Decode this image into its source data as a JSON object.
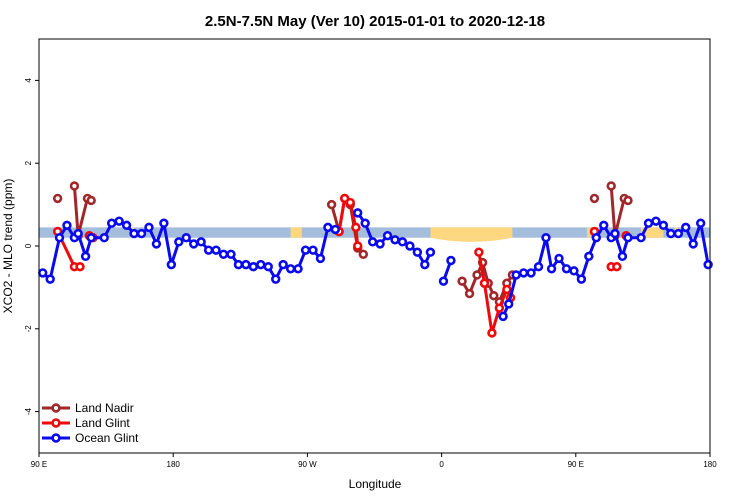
{
  "chart_data": {
    "type": "line",
    "title": "2.5N-7.5N May (Ver 10)   2015-01-01 to 2020-12-18",
    "xlabel": "Longitude",
    "ylabel": "XCO2 - MLO trend (ppm)",
    "xlim": [
      0,
      180
    ],
    "ylim": [
      -5,
      5
    ],
    "x_ticks": [
      {
        "value": 0,
        "label": "90 E"
      },
      {
        "value": 36,
        "label": "180"
      },
      {
        "value": 72,
        "label": "90 W"
      },
      {
        "value": 108,
        "label": "0"
      },
      {
        "value": 144,
        "label": "90 E"
      },
      {
        "value": 180,
        "label": "180"
      }
    ],
    "y_ticks": [
      -4,
      -2,
      0,
      2,
      4
    ],
    "grid": false,
    "legend_position": "bottom-left",
    "background_band": {
      "y_range": [
        0.2,
        0.45
      ],
      "ocean_color": "#a5bddc",
      "land_color": "#fdd77e",
      "land_x_segments": [
        [
          24.5,
          25.5
        ],
        [
          67.5,
          70.5
        ],
        [
          105,
          127
        ],
        [
          147,
          148
        ],
        [
          161.5,
          167.5
        ],
        [
          170.5,
          171.5
        ]
      ]
    },
    "series": [
      {
        "name": "Land Nadir",
        "color": "#a0282a",
        "segments": [
          [
            [
              5,
              1.15
            ]
          ],
          [
            [
              9.5,
              1.45
            ],
            [
              10.5,
              0.25
            ],
            [
              13,
              1.15
            ],
            [
              14,
              1.1
            ]
          ],
          [
            [
              78.5,
              1.0
            ],
            [
              80.5,
              0.35
            ],
            [
              82,
              1.15
            ],
            [
              83.5,
              1.0
            ],
            [
              85.5,
              -0.05
            ],
            [
              87,
              -0.2
            ]
          ],
          [
            [
              113.5,
              -0.85
            ],
            [
              115.5,
              -1.15
            ],
            [
              117.5,
              -0.7
            ],
            [
              119,
              -0.4
            ],
            [
              120.5,
              -0.9
            ],
            [
              122,
              -1.2
            ],
            [
              123.5,
              -1.35
            ],
            [
              125.5,
              -0.9
            ],
            [
              127,
              -0.7
            ]
          ],
          [
            [
              149,
              1.15
            ]
          ],
          [
            [
              153.5,
              1.45
            ],
            [
              154.5,
              0.25
            ],
            [
              157,
              1.15
            ],
            [
              158,
              1.1
            ]
          ]
        ]
      },
      {
        "name": "Land Glint",
        "color": "#ee0a0a",
        "segments": [
          [
            [
              5,
              0.35
            ],
            [
              9.5,
              -0.5
            ],
            [
              11,
              -0.5
            ]
          ],
          [
            [
              13.5,
              0.25
            ],
            [
              14.5,
              0.2
            ]
          ],
          [
            [
              80.5,
              0.35
            ],
            [
              82,
              1.15
            ],
            [
              83.5,
              1.05
            ],
            [
              85,
              0.45
            ],
            [
              85.5,
              0.0
            ]
          ],
          [
            [
              118,
              -0.15
            ],
            [
              119.5,
              -0.9
            ],
            [
              121.5,
              -2.1
            ],
            [
              123.5,
              -1.5
            ],
            [
              125.5,
              -1.05
            ],
            [
              126.5,
              -1.25
            ]
          ],
          [
            [
              149,
              0.35
            ]
          ],
          [
            [
              153.5,
              -0.5
            ],
            [
              155,
              -0.5
            ]
          ],
          [
            [
              157.5,
              0.25
            ]
          ]
        ]
      },
      {
        "name": "Ocean Glint",
        "color": "#0a0aee",
        "segments": [
          [
            [
              1,
              -0.65
            ],
            [
              3,
              -0.8
            ],
            [
              5.5,
              0.2
            ],
            [
              7.5,
              0.5
            ],
            [
              9.5,
              0.2
            ],
            [
              10.5,
              0.3
            ],
            [
              12.5,
              -0.25
            ],
            [
              14,
              0.2
            ],
            [
              17.5,
              0.2
            ],
            [
              19.5,
              0.55
            ],
            [
              21.5,
              0.6
            ],
            [
              23.5,
              0.5
            ],
            [
              25.5,
              0.3
            ],
            [
              27.5,
              0.3
            ],
            [
              29.5,
              0.45
            ],
            [
              31.5,
              0.05
            ],
            [
              33.5,
              0.55
            ],
            [
              35.5,
              -0.45
            ],
            [
              37.5,
              0.1
            ],
            [
              39.5,
              0.2
            ],
            [
              41.5,
              0.05
            ],
            [
              43.5,
              0.1
            ],
            [
              45.5,
              -0.1
            ],
            [
              47.5,
              -0.1
            ],
            [
              49.5,
              -0.2
            ],
            [
              51.5,
              -0.2
            ],
            [
              53.5,
              -0.45
            ],
            [
              55.5,
              -0.45
            ],
            [
              57.5,
              -0.5
            ],
            [
              59.5,
              -0.45
            ],
            [
              61.5,
              -0.5
            ],
            [
              63.5,
              -0.8
            ],
            [
              65.5,
              -0.45
            ],
            [
              67.5,
              -0.55
            ],
            [
              69.5,
              -0.55
            ],
            [
              71.5,
              -0.1
            ],
            [
              73.5,
              -0.1
            ],
            [
              75.5,
              -0.3
            ],
            [
              77.5,
              0.45
            ],
            [
              79.5,
              0.4
            ]
          ],
          [
            [
              85.5,
              0.8
            ],
            [
              87.5,
              0.55
            ],
            [
              89.5,
              0.1
            ],
            [
              91.5,
              0.05
            ],
            [
              93.5,
              0.25
            ],
            [
              95.5,
              0.15
            ],
            [
              97.5,
              0.1
            ],
            [
              99.5,
              0.0
            ],
            [
              101.5,
              -0.15
            ],
            [
              103.5,
              -0.45
            ],
            [
              105,
              -0.15
            ]
          ],
          [
            [
              108.5,
              -0.85
            ],
            [
              110.5,
              -0.35
            ]
          ],
          [
            [
              124.5,
              -1.7
            ],
            [
              126,
              -1.4
            ],
            [
              128,
              -0.7
            ],
            [
              130,
              -0.65
            ],
            [
              132,
              -0.65
            ],
            [
              134,
              -0.5
            ],
            [
              136,
              0.2
            ],
            [
              137.5,
              -0.55
            ],
            [
              139.5,
              -0.3
            ],
            [
              141.5,
              -0.55
            ],
            [
              143.5,
              -0.6
            ],
            [
              145.5,
              -0.8
            ],
            [
              147.5,
              -0.25
            ],
            [
              149.5,
              0.2
            ],
            [
              151.5,
              0.5
            ],
            [
              153.5,
              0.2
            ],
            [
              154.5,
              0.3
            ],
            [
              156.5,
              -0.25
            ],
            [
              158,
              0.2
            ],
            [
              161.5,
              0.2
            ],
            [
              163.5,
              0.55
            ],
            [
              165.5,
              0.6
            ],
            [
              167.5,
              0.5
            ],
            [
              169.5,
              0.3
            ],
            [
              171.5,
              0.3
            ],
            [
              173.5,
              0.45
            ],
            [
              175.5,
              0.05
            ],
            [
              177.5,
              0.55
            ],
            [
              179.5,
              -0.45
            ]
          ]
        ]
      }
    ]
  }
}
